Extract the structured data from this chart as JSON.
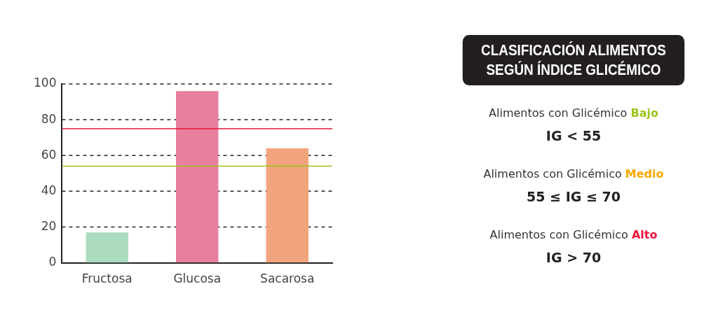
{
  "chart_data": [
    {
      "type": "bar",
      "categories": [
        "Fructosa",
        "Glucosa",
        "Sacarosa"
      ],
      "values": [
        17,
        96,
        64
      ],
      "colors": [
        "#acdcc0",
        "#e7809e",
        "#f2a47e"
      ],
      "ylim": [
        0,
        100
      ],
      "yticks": [
        0,
        20,
        40,
        60,
        80,
        100
      ],
      "grid": "y",
      "ref_lines": [
        {
          "axis": "y",
          "value": 75,
          "color": "#e8153a"
        },
        {
          "axis": "y",
          "value": 54,
          "color": "#9bc41a"
        }
      ]
    },
    {
      "type": "other",
      "title": "CLASIFICACIÓN ALIMENTOS SEGÚN ÍNDICE GLICÉMICO",
      "annotations": [
        "Alimentos con Glicémico Bajo",
        "IG < 55",
        "Alimentos con Glicémico Medio",
        "55 ≤ IG ≤ 70",
        "Alimentos con Glicémico Alto",
        "IG > 70"
      ]
    }
  ]
}
